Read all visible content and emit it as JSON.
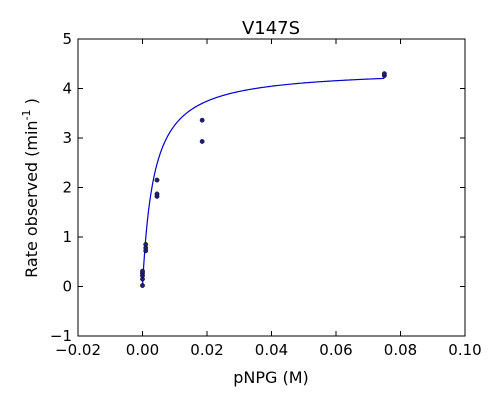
{
  "chart_data": {
    "type": "scatter",
    "title": "V147S",
    "xlabel": "pNPG (M)",
    "ylabel_prefix": "Rate observed (min",
    "ylabel_sup": "-1",
    "ylabel_suffix": " )",
    "xlim": [
      -0.02,
      0.1
    ],
    "ylim": [
      -1,
      5
    ],
    "xticks": [
      -0.02,
      0.0,
      0.02,
      0.04,
      0.06,
      0.08,
      0.1
    ],
    "xtick_labels": [
      "−0.02",
      "0.00",
      "0.02",
      "0.04",
      "0.06",
      "0.08",
      "0.10"
    ],
    "yticks": [
      -1,
      0,
      1,
      2,
      3,
      4,
      5
    ],
    "ytick_labels": [
      "−1",
      "0",
      "1",
      "2",
      "3",
      "4",
      "5"
    ],
    "grid": false,
    "series": [
      {
        "marker": "dot",
        "color": "#1f1f7a",
        "points": [
          {
            "x": 0.0,
            "y": 0.02
          },
          {
            "x": 0.0,
            "y": 0.15
          },
          {
            "x": 0.0,
            "y": 0.22
          },
          {
            "x": 0.0,
            "y": 0.27
          },
          {
            "x": 0.0,
            "y": 0.31
          },
          {
            "x": 0.001,
            "y": 0.72
          },
          {
            "x": 0.001,
            "y": 0.78
          },
          {
            "x": 0.001,
            "y": 0.85
          },
          {
            "x": 0.0045,
            "y": 1.82
          },
          {
            "x": 0.0045,
            "y": 1.87
          },
          {
            "x": 0.0045,
            "y": 2.15
          },
          {
            "x": 0.0185,
            "y": 2.93
          },
          {
            "x": 0.0185,
            "y": 3.36
          },
          {
            "x": 0.075,
            "y": 4.26
          },
          {
            "x": 0.075,
            "y": 4.3
          }
        ]
      }
    ],
    "fit": {
      "type": "michaelis-menten",
      "color": "#0000cc",
      "vmax": 4.4,
      "km": 0.0035,
      "x_start": 0.0,
      "x_end": 0.075
    }
  }
}
